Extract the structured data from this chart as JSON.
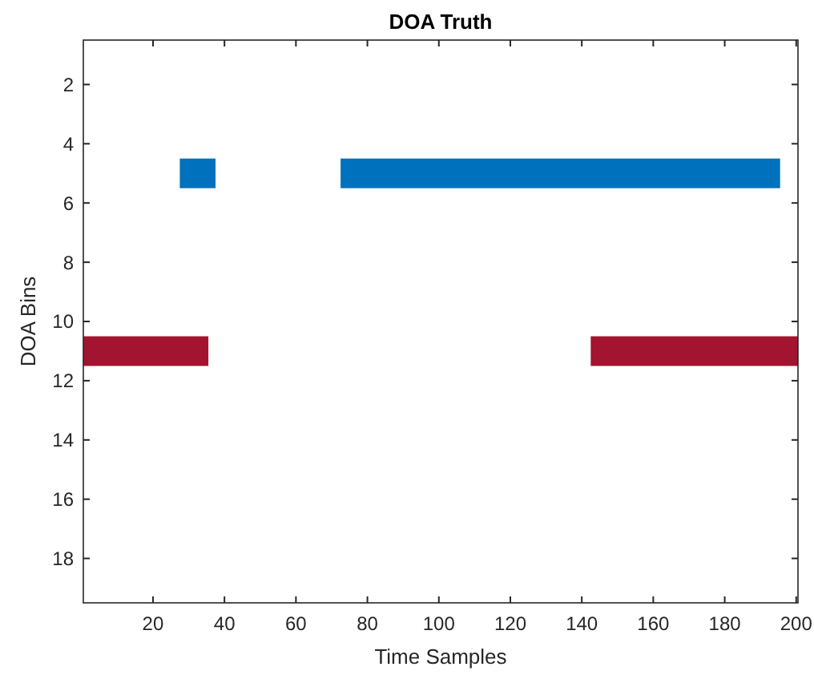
{
  "chart_data": {
    "type": "line",
    "title": "DOA Truth",
    "xlabel": "Time Samples",
    "ylabel": "DOA Bins",
    "xlim": [
      0.5,
      200.5
    ],
    "xticks": [
      20,
      40,
      60,
      80,
      100,
      120,
      140,
      160,
      180,
      200
    ],
    "ylim": [
      19.5,
      0.5
    ],
    "yticks": [
      2,
      4,
      6,
      8,
      10,
      12,
      14,
      16,
      18
    ],
    "grid": false,
    "line_style": "solid",
    "series": [
      {
        "color": "#0072bd",
        "x": [
          27.5,
          37.5,
          55,
          72.5,
          195.5
        ],
        "values": [
          5,
          5,
          null,
          5,
          5
        ]
      },
      {
        "color": "#a2142f",
        "x": [
          0.5,
          35.5,
          90,
          142.5,
          200.5
        ],
        "values": [
          11,
          11,
          null,
          11,
          11
        ]
      }
    ]
  }
}
